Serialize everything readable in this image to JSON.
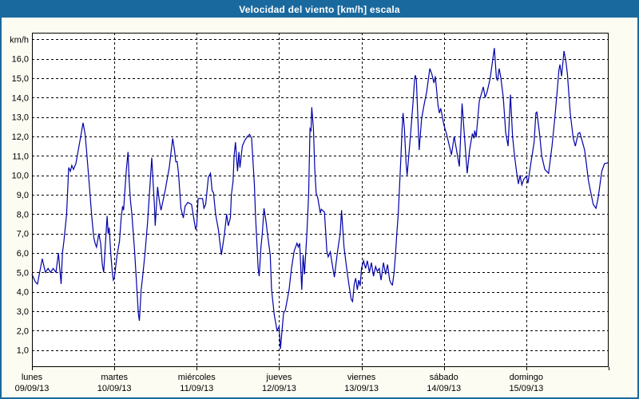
{
  "window": {
    "title": "Velocidad del viento [km/h] escala"
  },
  "colors": {
    "titlebar_bg": "#1A699E",
    "titlebar_text": "#FFFFFF",
    "frame_border": "#1A699E",
    "page_bg": "#FCFCF2",
    "plot_bg": "#FFFFFF",
    "grid_color": "#000000",
    "axis_text": "#000000",
    "line_color": "#0000A8"
  },
  "chart_data": {
    "type": "line",
    "title": "Velocidad del viento [km/h] escala",
    "ylabel_unit": "km/h",
    "ylim": [
      0.12,
      17.34
    ],
    "grid": "dashed",
    "legend": "none",
    "y_gridlines": [
      1,
      2,
      3,
      4,
      5,
      6,
      7,
      8,
      9,
      10,
      11,
      12,
      13,
      14,
      15,
      16,
      17
    ],
    "y_ticks": [
      1,
      2,
      3,
      4,
      5,
      6,
      7,
      8,
      9,
      10,
      11,
      12,
      13,
      14,
      15,
      16
    ],
    "y_tick_labels": [
      "1,0",
      "2,0",
      "3,0",
      "4,0",
      "5,0",
      "6,0",
      "7,0",
      "8,0",
      "9,0",
      "10,0",
      "11,0",
      "12,0",
      "13,0",
      "14,0",
      "15,0",
      "16,0"
    ],
    "x_days": [
      {
        "name": "lunes",
        "date": "09/09/13"
      },
      {
        "name": "martes",
        "date": "10/09/13"
      },
      {
        "name": "miércoles",
        "date": "11/09/13"
      },
      {
        "name": "jueves",
        "date": "12/09/13"
      },
      {
        "name": "viernes",
        "date": "13/09/13"
      },
      {
        "name": "sábado",
        "date": "14/09/13"
      },
      {
        "name": "domingo",
        "date": "15/09/13"
      }
    ],
    "hours_per_day": 24,
    "x_range_hours": [
      0,
      168
    ],
    "series": [
      {
        "name": "Velocidad del viento",
        "color": "#0000A8",
        "points": [
          [
            0,
            4.9
          ],
          [
            1,
            4.5
          ],
          [
            1.6,
            4.4
          ],
          [
            3,
            5.7
          ],
          [
            3.9,
            5.0
          ],
          [
            4.7,
            5.2
          ],
          [
            5.4,
            5.0
          ],
          [
            6.2,
            5.2
          ],
          [
            7,
            5.0
          ],
          [
            7.7,
            6.0
          ],
          [
            8.5,
            4.4
          ],
          [
            8.9,
            6.0
          ],
          [
            9.3,
            6.6
          ],
          [
            10.1,
            8.0
          ],
          [
            10.7,
            10.4
          ],
          [
            11.2,
            10.2
          ],
          [
            11.6,
            10.5
          ],
          [
            12.1,
            10.3
          ],
          [
            12.8,
            10.6
          ],
          [
            14,
            11.8
          ],
          [
            14.9,
            12.7
          ],
          [
            15.5,
            12.1
          ],
          [
            15.9,
            11.3
          ],
          [
            16.8,
            9.3
          ],
          [
            17.4,
            7.9
          ],
          [
            18,
            6.8
          ],
          [
            18.4,
            6.5
          ],
          [
            18.8,
            6.3
          ],
          [
            19.5,
            7.0
          ],
          [
            20,
            6.5
          ],
          [
            20.5,
            5.4
          ],
          [
            20.9,
            5.0
          ],
          [
            21.9,
            7.9
          ],
          [
            22.2,
            7.0
          ],
          [
            22.5,
            7.3
          ],
          [
            23,
            5.9
          ],
          [
            23.4,
            5.0
          ],
          [
            23.7,
            4.6
          ],
          [
            24,
            4.7
          ],
          [
            24.8,
            5.9
          ],
          [
            25.5,
            6.6
          ],
          [
            26,
            7.8
          ],
          [
            26.4,
            8.4
          ],
          [
            26.7,
            8.2
          ],
          [
            27.5,
            10.3
          ],
          [
            28,
            11.2
          ],
          [
            28.3,
            9.8
          ],
          [
            28.7,
            8.7
          ],
          [
            29.1,
            8.0
          ],
          [
            29.9,
            6.1
          ],
          [
            31,
            2.9
          ],
          [
            31.3,
            2.5
          ],
          [
            31.8,
            4.1
          ],
          [
            32.2,
            4.7
          ],
          [
            33,
            6.1
          ],
          [
            33.7,
            7.6
          ],
          [
            34.9,
            10.9
          ],
          [
            35.3,
            9.6
          ],
          [
            35.7,
            8.4
          ],
          [
            35.9,
            7.4
          ],
          [
            36.6,
            9.4
          ],
          [
            37.1,
            8.7
          ],
          [
            37.6,
            8.2
          ],
          [
            38.8,
            9.2
          ],
          [
            40,
            10.4
          ],
          [
            41,
            11.9
          ],
          [
            41.5,
            11.3
          ],
          [
            41.9,
            10.7
          ],
          [
            42.3,
            10.7
          ],
          [
            42.7,
            10.1
          ],
          [
            43.4,
            8.3
          ],
          [
            44.1,
            7.8
          ],
          [
            44.6,
            8.4
          ],
          [
            45.4,
            8.6
          ],
          [
            46.5,
            8.5
          ],
          [
            47.3,
            7.6
          ],
          [
            47.7,
            7.2
          ],
          [
            48,
            7.4
          ],
          [
            48.4,
            8.8
          ],
          [
            49.7,
            8.8
          ],
          [
            50.1,
            8.3
          ],
          [
            50.6,
            8.5
          ],
          [
            51.4,
            9.9
          ],
          [
            52,
            10.1
          ],
          [
            52.5,
            9.2
          ],
          [
            52.9,
            9.1
          ],
          [
            53.5,
            8.0
          ],
          [
            54.3,
            7.2
          ],
          [
            54.7,
            6.6
          ],
          [
            55.2,
            5.9
          ],
          [
            56.1,
            7.0
          ],
          [
            56.7,
            8.0
          ],
          [
            57.2,
            7.4
          ],
          [
            57.8,
            7.8
          ],
          [
            58.1,
            9.0
          ],
          [
            58.6,
            9.7
          ],
          [
            58.9,
            11.0
          ],
          [
            59.3,
            11.7
          ],
          [
            59.9,
            10.2
          ],
          [
            60.3,
            11.2
          ],
          [
            60.6,
            10.4
          ],
          [
            61.3,
            11.5
          ],
          [
            62,
            11.8
          ],
          [
            62.8,
            12.0
          ],
          [
            63.4,
            12.1
          ],
          [
            64,
            11.9
          ],
          [
            64.8,
            9.5
          ],
          [
            65.1,
            8.0
          ],
          [
            65.5,
            6.6
          ],
          [
            65.9,
            5.2
          ],
          [
            66.2,
            4.8
          ],
          [
            66.7,
            6.3
          ],
          [
            67.1,
            7.0
          ],
          [
            67.6,
            8.3
          ],
          [
            68.2,
            7.6
          ],
          [
            68.6,
            7.0
          ],
          [
            69.4,
            5.9
          ],
          [
            69.8,
            4.1
          ],
          [
            70.6,
            2.8
          ],
          [
            71.4,
            2.0
          ],
          [
            72,
            2.2
          ],
          [
            72.4,
            1.05
          ],
          [
            72.9,
            2.1
          ],
          [
            73.3,
            2.9
          ],
          [
            73.8,
            3.05
          ],
          [
            74.9,
            4.1
          ],
          [
            75.6,
            5.2
          ],
          [
            76.4,
            6.1
          ],
          [
            77.2,
            6.5
          ],
          [
            77.6,
            6.3
          ],
          [
            78,
            6.5
          ],
          [
            78.6,
            4.1
          ],
          [
            79,
            5.9
          ],
          [
            79.4,
            4.9
          ],
          [
            80.1,
            7.0
          ],
          [
            80.6,
            9.0
          ],
          [
            81,
            12.4
          ],
          [
            81.3,
            12.3
          ],
          [
            81.5,
            13.5
          ],
          [
            82,
            12.4
          ],
          [
            82.4,
            10.3
          ],
          [
            82.8,
            9.1
          ],
          [
            83.3,
            8.8
          ],
          [
            84,
            8.05
          ],
          [
            84.3,
            8.25
          ],
          [
            85.2,
            8.1
          ],
          [
            85.9,
            6.1
          ],
          [
            86.3,
            5.8
          ],
          [
            86.9,
            6.05
          ],
          [
            87.4,
            5.5
          ],
          [
            88.1,
            4.75
          ],
          [
            89,
            6.05
          ],
          [
            89.8,
            7.0
          ],
          [
            90.2,
            8.2
          ],
          [
            90.9,
            6.3
          ],
          [
            91.4,
            5.6
          ],
          [
            91.9,
            4.9
          ],
          [
            92.4,
            4.3
          ],
          [
            93,
            3.6
          ],
          [
            93.4,
            3.5
          ],
          [
            93.9,
            4.4
          ],
          [
            94.3,
            4.7
          ],
          [
            94.8,
            4.1
          ],
          [
            95.2,
            4.6
          ],
          [
            95.6,
            4.3
          ],
          [
            96,
            5.2
          ],
          [
            96.6,
            5.6
          ],
          [
            97.2,
            5.2
          ],
          [
            97.7,
            5.6
          ],
          [
            98.3,
            5.0
          ],
          [
            98.9,
            5.5
          ],
          [
            99.5,
            4.8
          ],
          [
            100.1,
            5.3
          ],
          [
            100.6,
            5.05
          ],
          [
            101.2,
            5.2
          ],
          [
            101.7,
            4.6
          ],
          [
            102.4,
            5.5
          ],
          [
            103,
            4.9
          ],
          [
            103.6,
            5.4
          ],
          [
            104.2,
            4.6
          ],
          [
            104.7,
            4.4
          ],
          [
            105,
            4.35
          ],
          [
            105.5,
            5.0
          ],
          [
            105.9,
            5.9
          ],
          [
            106.3,
            7.0
          ],
          [
            106.7,
            8.0
          ],
          [
            107.1,
            9.5
          ],
          [
            107.5,
            11.0
          ],
          [
            107.8,
            12.3
          ],
          [
            108.1,
            13.2
          ],
          [
            108.5,
            12.4
          ],
          [
            109,
            10.6
          ],
          [
            109.3,
            10.0
          ],
          [
            110.3,
            12.1
          ],
          [
            111,
            13.7
          ],
          [
            111.5,
            15.0
          ],
          [
            111.7,
            15.15
          ],
          [
            112,
            14.9
          ],
          [
            112.4,
            13.0
          ],
          [
            112.8,
            11.3
          ],
          [
            113.5,
            12.9
          ],
          [
            114.2,
            13.6
          ],
          [
            115,
            14.3
          ],
          [
            115.9,
            15.5
          ],
          [
            116.5,
            15.2
          ],
          [
            117.1,
            14.75
          ],
          [
            117.5,
            15.1
          ],
          [
            118.3,
            13.6
          ],
          [
            118.7,
            13.2
          ],
          [
            119.1,
            13.45
          ],
          [
            120,
            12.6
          ],
          [
            120.8,
            12.1
          ],
          [
            121.2,
            11.8
          ],
          [
            122.2,
            11.05
          ],
          [
            123,
            12.0
          ],
          [
            124.5,
            10.45
          ],
          [
            125.3,
            13.7
          ],
          [
            126,
            12.0
          ],
          [
            126.8,
            10.1
          ],
          [
            127.5,
            11.3
          ],
          [
            128.3,
            12.15
          ],
          [
            128.7,
            11.9
          ],
          [
            129,
            12.3
          ],
          [
            129.4,
            11.95
          ],
          [
            130.3,
            13.8
          ],
          [
            131.5,
            14.55
          ],
          [
            132,
            14.0
          ],
          [
            132.6,
            14.3
          ],
          [
            133.5,
            15.0
          ],
          [
            134.7,
            16.55
          ],
          [
            135.3,
            15.0
          ],
          [
            135.6,
            14.9
          ],
          [
            136.1,
            15.5
          ],
          [
            136.6,
            15.0
          ],
          [
            137.3,
            14.0
          ],
          [
            138,
            12.2
          ],
          [
            138.7,
            11.5
          ],
          [
            139.4,
            14.15
          ],
          [
            140,
            12.0
          ],
          [
            140.6,
            11.0
          ],
          [
            141.2,
            10.15
          ],
          [
            141.7,
            9.55
          ],
          [
            142.2,
            10.0
          ],
          [
            142.7,
            9.5
          ],
          [
            143.3,
            9.8
          ],
          [
            144,
            9.95
          ],
          [
            144.5,
            9.6
          ],
          [
            145.4,
            10.7
          ],
          [
            146.3,
            11.7
          ],
          [
            146.8,
            13.2
          ],
          [
            147.1,
            13.25
          ],
          [
            147.9,
            12.1
          ],
          [
            148.5,
            11.0
          ],
          [
            149.4,
            10.3
          ],
          [
            150.5,
            10.1
          ],
          [
            151.5,
            11.5
          ],
          [
            152.3,
            12.9
          ],
          [
            153,
            14.3
          ],
          [
            153.5,
            15.4
          ],
          [
            153.8,
            15.7
          ],
          [
            154.3,
            15.1
          ],
          [
            155,
            16.4
          ],
          [
            155.6,
            15.8
          ],
          [
            156,
            15.2
          ],
          [
            156.8,
            13.2
          ],
          [
            157.7,
            11.9
          ],
          [
            158.3,
            11.5
          ],
          [
            159.1,
            12.15
          ],
          [
            159.6,
            12.2
          ],
          [
            160.4,
            11.7
          ],
          [
            161,
            11.3
          ],
          [
            161.5,
            10.6
          ],
          [
            162.1,
            9.75
          ],
          [
            162.7,
            9.2
          ],
          [
            163.5,
            8.5
          ],
          [
            164.3,
            8.3
          ],
          [
            164.9,
            8.8
          ],
          [
            165.3,
            9.3
          ],
          [
            166,
            10.2
          ],
          [
            166.8,
            10.6
          ],
          [
            168,
            10.65
          ]
        ]
      }
    ]
  }
}
